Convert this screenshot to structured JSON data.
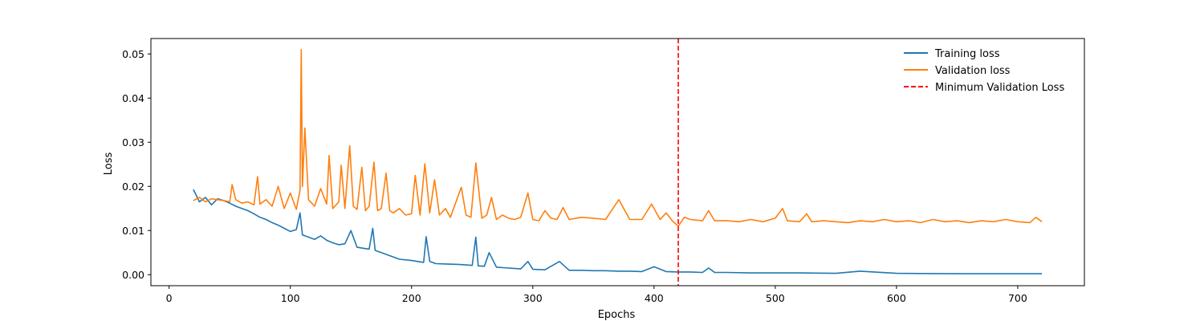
{
  "chart_data": {
    "type": "line",
    "xlabel": "Epochs",
    "ylabel": "Loss",
    "xlim": [
      -15,
      755
    ],
    "ylim": [
      -0.0025,
      0.0535
    ],
    "xticks": [
      0,
      100,
      200,
      300,
      400,
      500,
      600,
      700
    ],
    "yticks": [
      0.0,
      0.01,
      0.02,
      0.03,
      0.04,
      0.05
    ],
    "ytick_labels": [
      "0.00",
      "0.01",
      "0.02",
      "0.03",
      "0.04",
      "0.05"
    ],
    "grid": false,
    "legend_position": "top-right",
    "series": [
      {
        "name": "Training loss",
        "color": "#1f77b4",
        "style": "solid",
        "x": [
          20,
          25,
          30,
          35,
          40,
          45,
          50,
          55,
          60,
          65,
          70,
          75,
          80,
          85,
          90,
          95,
          100,
          105,
          108,
          110,
          115,
          120,
          125,
          130,
          135,
          140,
          145,
          150,
          155,
          160,
          165,
          168,
          170,
          175,
          180,
          185,
          190,
          200,
          205,
          210,
          212,
          215,
          220,
          230,
          240,
          250,
          253,
          255,
          260,
          264,
          270,
          280,
          290,
          296,
          300,
          310,
          322,
          330,
          340,
          350,
          360,
          370,
          380,
          390,
          400,
          410,
          420,
          430,
          440,
          445,
          450,
          460,
          480,
          500,
          520,
          550,
          570,
          600,
          650,
          700,
          720
        ],
        "y": [
          0.0193,
          0.0165,
          0.0175,
          0.0158,
          0.0172,
          0.0168,
          0.0162,
          0.0155,
          0.015,
          0.0145,
          0.0138,
          0.013,
          0.0125,
          0.0118,
          0.0112,
          0.0105,
          0.0098,
          0.0102,
          0.014,
          0.009,
          0.0085,
          0.008,
          0.0088,
          0.0078,
          0.0072,
          0.0068,
          0.007,
          0.01,
          0.0062,
          0.006,
          0.0058,
          0.0105,
          0.0055,
          0.005,
          0.0045,
          0.004,
          0.0035,
          0.0032,
          0.003,
          0.0028,
          0.0086,
          0.003,
          0.0025,
          0.0024,
          0.0023,
          0.0021,
          0.0085,
          0.002,
          0.0019,
          0.005,
          0.0017,
          0.0015,
          0.0013,
          0.003,
          0.0012,
          0.0011,
          0.003,
          0.001,
          0.001,
          0.0009,
          0.0009,
          0.0008,
          0.0008,
          0.0007,
          0.0018,
          0.0007,
          0.0006,
          0.0006,
          0.0005,
          0.0015,
          0.0005,
          0.0005,
          0.0004,
          0.0004,
          0.0004,
          0.0003,
          0.0008,
          0.0003,
          0.0002,
          0.0002,
          0.0002
        ]
      },
      {
        "name": "Validation loss",
        "color": "#ff7f0e",
        "style": "solid",
        "x": [
          20,
          25,
          30,
          35,
          40,
          45,
          50,
          52,
          55,
          60,
          65,
          70,
          73,
          75,
          80,
          85,
          90,
          95,
          100,
          105,
          108,
          109,
          110,
          112,
          115,
          120,
          125,
          130,
          132,
          135,
          140,
          142,
          145,
          149,
          152,
          155,
          159,
          162,
          165,
          169,
          172,
          175,
          179,
          182,
          185,
          190,
          195,
          200,
          203,
          207,
          211,
          215,
          219,
          223,
          228,
          232,
          236,
          241,
          245,
          249,
          253,
          258,
          262,
          266,
          270,
          275,
          280,
          285,
          290,
          296,
          300,
          305,
          310,
          315,
          320,
          325,
          330,
          340,
          350,
          360,
          371,
          380,
          390,
          398,
          405,
          410,
          415,
          420,
          425,
          430,
          440,
          445,
          450,
          460,
          470,
          480,
          490,
          500,
          506,
          510,
          520,
          526,
          530,
          540,
          550,
          560,
          570,
          580,
          590,
          600,
          610,
          620,
          630,
          640,
          650,
          660,
          670,
          680,
          690,
          700,
          710,
          715,
          720
        ],
        "y": [
          0.0168,
          0.0175,
          0.0165,
          0.0172,
          0.017,
          0.0168,
          0.0165,
          0.0204,
          0.017,
          0.0162,
          0.0165,
          0.0158,
          0.0222,
          0.016,
          0.017,
          0.0155,
          0.02,
          0.015,
          0.0185,
          0.0148,
          0.0192,
          0.051,
          0.02,
          0.0332,
          0.017,
          0.0155,
          0.0195,
          0.016,
          0.027,
          0.015,
          0.0165,
          0.0248,
          0.015,
          0.0292,
          0.0155,
          0.0148,
          0.0243,
          0.0145,
          0.0155,
          0.0255,
          0.0145,
          0.015,
          0.023,
          0.0145,
          0.014,
          0.015,
          0.0135,
          0.0138,
          0.0225,
          0.0135,
          0.0251,
          0.014,
          0.0215,
          0.0135,
          0.015,
          0.013,
          0.016,
          0.0198,
          0.0135,
          0.013,
          0.0253,
          0.0128,
          0.0135,
          0.0175,
          0.0125,
          0.0135,
          0.0128,
          0.0125,
          0.013,
          0.0185,
          0.0125,
          0.0122,
          0.0145,
          0.0128,
          0.0125,
          0.0152,
          0.0125,
          0.013,
          0.0128,
          0.0125,
          0.017,
          0.0125,
          0.0125,
          0.016,
          0.0125,
          0.014,
          0.0122,
          0.011,
          0.013,
          0.0125,
          0.0122,
          0.0145,
          0.0122,
          0.0122,
          0.012,
          0.0125,
          0.012,
          0.0128,
          0.015,
          0.0122,
          0.012,
          0.0138,
          0.012,
          0.0122,
          0.012,
          0.0118,
          0.0122,
          0.012,
          0.0125,
          0.012,
          0.0122,
          0.0118,
          0.0125,
          0.012,
          0.0122,
          0.0118,
          0.0122,
          0.012,
          0.0125,
          0.012,
          0.0118,
          0.013,
          0.012
        ]
      }
    ],
    "markers": [
      {
        "name": "Minimum Validation Loss",
        "type": "vline",
        "x": 420,
        "color": "#ff0000",
        "style": "dashed"
      }
    ]
  }
}
